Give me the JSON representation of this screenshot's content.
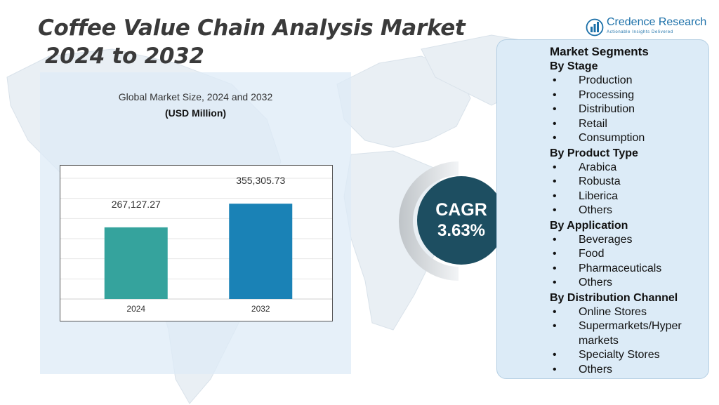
{
  "header": {
    "title_line1": "Coffee Value Chain Analysis Market",
    "title_line2": "2024 to 2032"
  },
  "logo": {
    "name": "Credence Research",
    "tagline": "Actionable Insights Delivered"
  },
  "chart_data": {
    "type": "bar",
    "title": "Global Market Size, 2024 and 2032",
    "ylabel": "(USD Million)",
    "xlabel": "",
    "categories": [
      "2024",
      "2032"
    ],
    "values": [
      267127.27,
      355305.73
    ],
    "value_labels": [
      "267,127.27",
      "355,305.73"
    ],
    "colors": [
      "#35a39d",
      "#1a82b6"
    ],
    "ylim": [
      0,
      450000
    ],
    "grid": true,
    "legend": "none"
  },
  "cagr": {
    "label": "CAGR",
    "value": "3.63%"
  },
  "segments": {
    "title": "Market Segments",
    "groups": [
      {
        "heading": "By Stage",
        "items": [
          "Production",
          "Processing",
          "Distribution",
          "Retail",
          "Consumption"
        ]
      },
      {
        "heading": "By Product Type",
        "items": [
          "Arabica",
          "Robusta",
          "Liberica",
          "Others"
        ]
      },
      {
        "heading": "By Application",
        "items": [
          "Beverages",
          "Food",
          "Pharmaceuticals",
          "Others"
        ]
      },
      {
        "heading": "By Distribution Channel",
        "items": [
          "Online Stores",
          "Supermarkets/Hyper markets",
          "Specialty Stores",
          "Others"
        ]
      }
    ]
  },
  "colors": {
    "title": "#3a3a3a",
    "cagr_circle": "#1d4e61",
    "panel": "#dcebf7",
    "brand": "#1a6fa8"
  }
}
